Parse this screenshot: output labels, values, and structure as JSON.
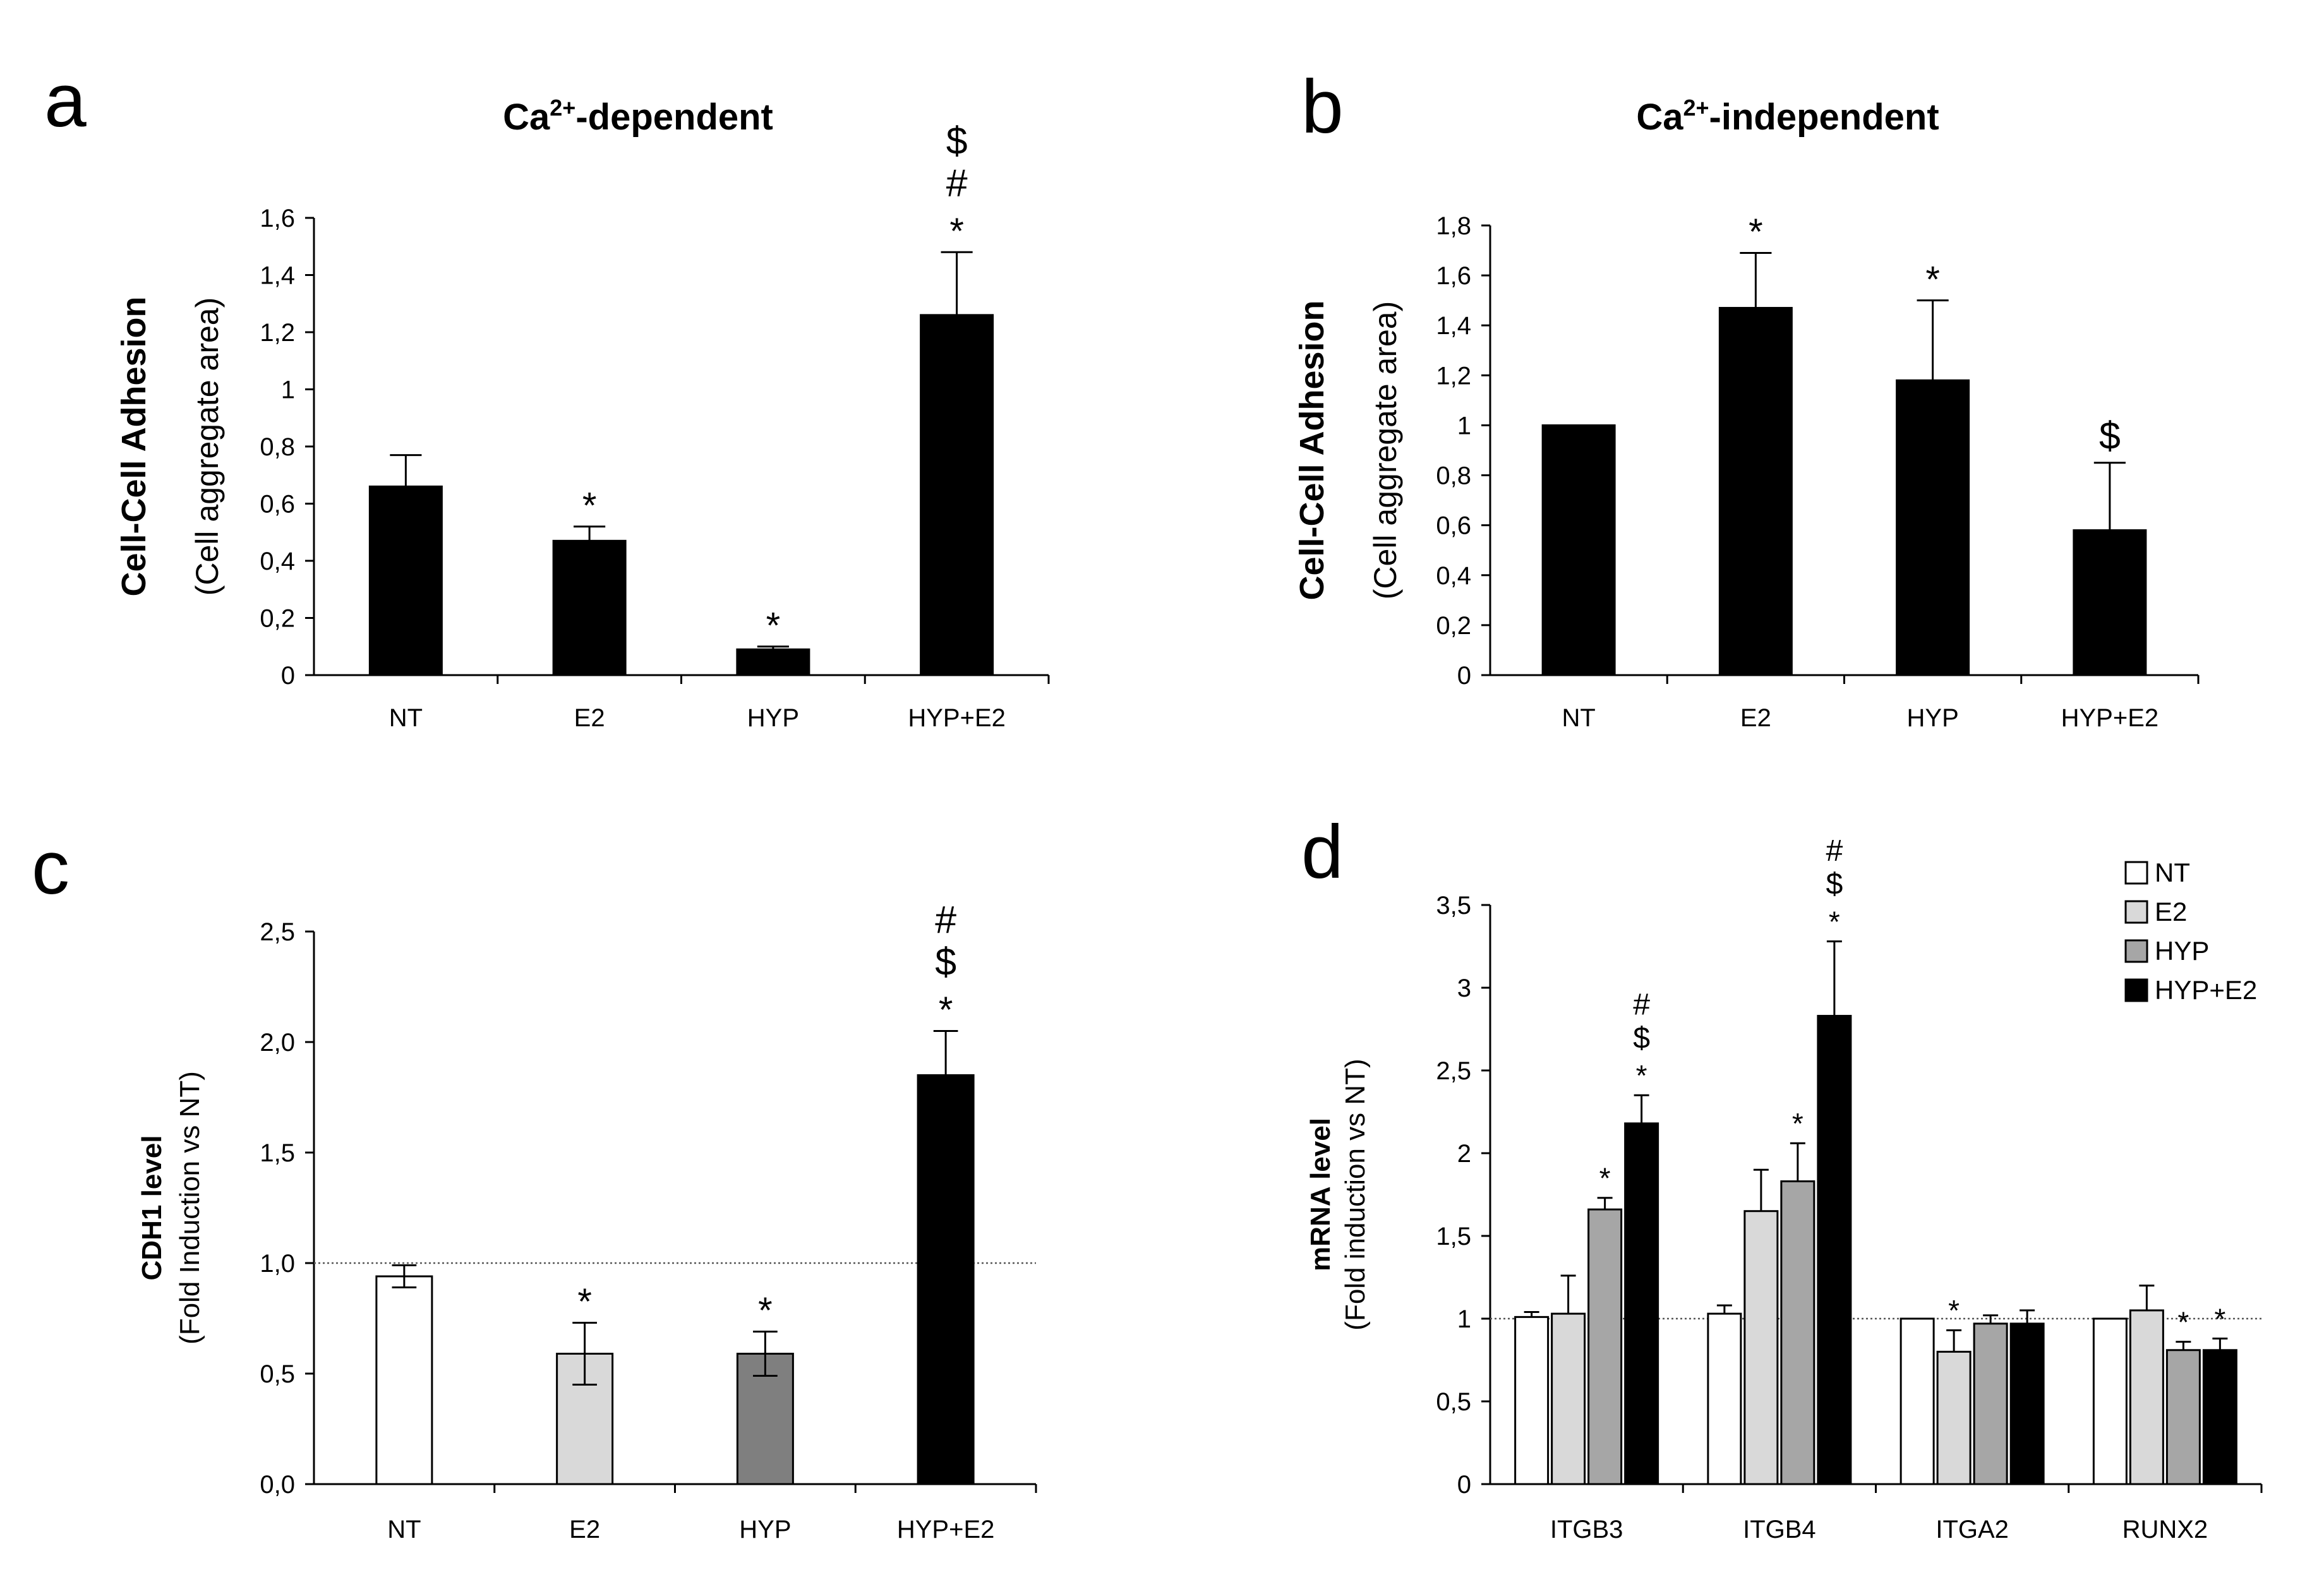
{
  "chart_data": [
    {
      "panel": "a",
      "type": "bar",
      "title": "Ca",
      "title_sup": "2+",
      "title_rest": "-dependent",
      "ylabel_bold": "Cell-Cell Adhesion",
      "ylabel": "(Cell aggregate area)",
      "ylim": [
        0,
        1.6
      ],
      "ytick_values": [
        0,
        0.2,
        0.4,
        0.6,
        0.8,
        1,
        1.2,
        1.4,
        1.6
      ],
      "ytick_labels": [
        "0",
        "0,2",
        "0,4",
        "0,6",
        "0,8",
        "1",
        "1,2",
        "1,4",
        "1,6"
      ],
      "categories": [
        "NT",
        "E2",
        "HYP",
        "HYP+E2"
      ],
      "values": [
        0.66,
        0.47,
        0.09,
        1.26
      ],
      "errors": [
        0.11,
        0.05,
        0.01,
        0.22
      ],
      "colors": [
        "#000000",
        "#000000",
        "#000000",
        "#000000"
      ],
      "significance": [
        [],
        [
          "*"
        ],
        [
          "*"
        ],
        [
          "*",
          "#",
          "$"
        ]
      ]
    },
    {
      "panel": "b",
      "type": "bar",
      "title": "Ca",
      "title_sup": "2+",
      "title_rest": "-independent",
      "ylabel_bold": "Cell-Cell Adhesion",
      "ylabel": "(Cell aggregate area)",
      "ylim": [
        0,
        1.8
      ],
      "ytick_values": [
        0,
        0.2,
        0.4,
        0.6,
        0.8,
        1,
        1.2,
        1.4,
        1.6,
        1.8
      ],
      "ytick_labels": [
        "0",
        "0,2",
        "0,4",
        "0,6",
        "0,8",
        "1",
        "1,2",
        "1,4",
        "1,6",
        "1,8"
      ],
      "categories": [
        "NT",
        "E2",
        "HYP",
        "HYP+E2"
      ],
      "values": [
        1.0,
        1.47,
        1.18,
        0.58
      ],
      "errors": [
        0,
        0.22,
        0.32,
        0.27
      ],
      "colors": [
        "#000000",
        "#000000",
        "#000000",
        "#000000"
      ],
      "significance": [
        [],
        [
          "*"
        ],
        [
          "*"
        ],
        [
          "$"
        ]
      ]
    },
    {
      "panel": "c",
      "type": "bar",
      "ylabel_bold": "CDH1 level",
      "ylabel": "(Fold Induction vs NT)",
      "ylim": [
        0,
        2.5
      ],
      "ytick_values": [
        0,
        0.5,
        1,
        1.5,
        2,
        2.5
      ],
      "ytick_labels": [
        "0,0",
        "0,5",
        "1,0",
        "1,5",
        "2,0",
        "2,5"
      ],
      "reference_line": 1.0,
      "categories": [
        "NT",
        "E2",
        "HYP",
        "HYP+E2"
      ],
      "values": [
        0.94,
        0.59,
        0.59,
        1.85
      ],
      "errors": [
        0.05,
        0.14,
        0.1,
        0.2
      ],
      "colors": [
        "#ffffff",
        "#d9d9d9",
        "#7f7f7f",
        "#000000"
      ],
      "significance": [
        [],
        [
          "*"
        ],
        [
          "*"
        ],
        [
          "*",
          "$",
          "#"
        ]
      ]
    },
    {
      "panel": "d",
      "type": "bar",
      "ylabel_bold": "mRNA level",
      "ylabel": "(Fold induction vs NT)",
      "ylim": [
        0,
        3.5
      ],
      "ytick_values": [
        0,
        0.5,
        1,
        1.5,
        2,
        2.5,
        3,
        3.5
      ],
      "ytick_labels": [
        "0",
        "0,5",
        "1",
        "1,5",
        "2",
        "2,5",
        "3",
        "3,5"
      ],
      "reference_line": 1.0,
      "categories": [
        "ITGB3",
        "ITGB4",
        "ITGA2",
        "RUNX2"
      ],
      "series": [
        {
          "name": "NT",
          "color": "#ffffff",
          "values": [
            1.01,
            1.03,
            1.0,
            1.0
          ],
          "errors": [
            0.03,
            0.05,
            0,
            0
          ],
          "significance": [
            [],
            [],
            [],
            []
          ]
        },
        {
          "name": "E2",
          "color": "#d9d9d9",
          "values": [
            1.03,
            1.65,
            0.8,
            1.05
          ],
          "errors": [
            0.23,
            0.25,
            0.13,
            0.15
          ],
          "significance": [
            [],
            [],
            [
              "*"
            ],
            []
          ]
        },
        {
          "name": "HYP",
          "color": "#a6a6a6",
          "values": [
            1.66,
            1.83,
            0.97,
            0.81
          ],
          "errors": [
            0.07,
            0.23,
            0.05,
            0.05
          ],
          "significance": [
            [
              "*"
            ],
            [
              "*"
            ],
            [],
            [
              "*"
            ]
          ]
        },
        {
          "name": "HYP+E2",
          "color": "#000000",
          "values": [
            2.18,
            2.83,
            0.97,
            0.81
          ],
          "errors": [
            0.17,
            0.45,
            0.08,
            0.07
          ],
          "significance": [
            [
              "*",
              "$",
              "#"
            ],
            [
              "*",
              "$",
              "#"
            ],
            [],
            [
              "*"
            ]
          ]
        }
      ],
      "legend_position": "top-right"
    }
  ]
}
